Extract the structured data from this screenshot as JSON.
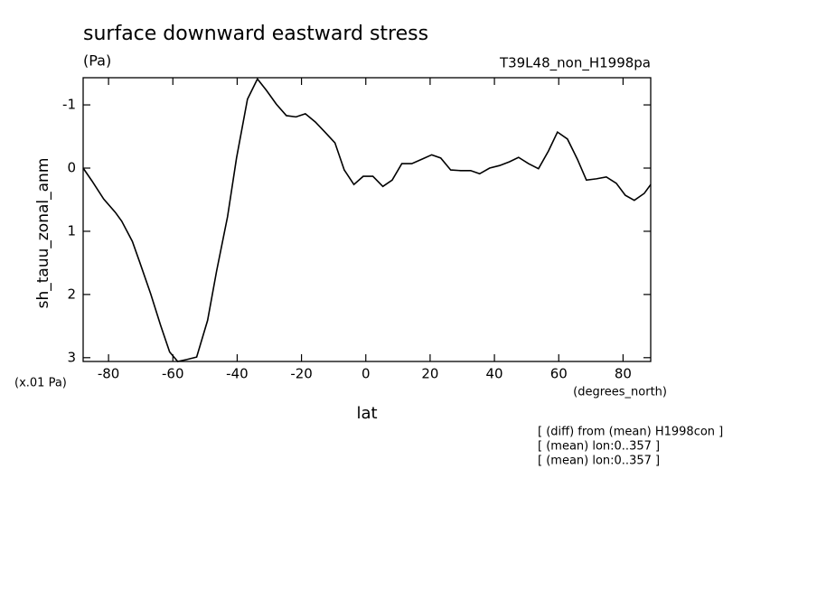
{
  "chart_data": {
    "type": "line",
    "title": "surface downward eastward stress",
    "units": "(Pa)",
    "run_label": "T39L48_non_H1998pa",
    "y_label": "sh_tauu_zonal_anm",
    "y_scale_note": "(x.01 Pa)",
    "x_units": "(degrees_north)",
    "x_label": "lat",
    "notes": [
      "[ (diff) from (mean) H1998con ]",
      "[ (mean) lon:0..357 ]",
      "[ (mean) lon:0..357 ]"
    ],
    "xlim": [
      -87.9,
      88.6
    ],
    "xticks": [
      -80,
      -60,
      -40,
      -20,
      0,
      20,
      40,
      60,
      80
    ],
    "ylim": [
      3.06,
      -1.43
    ],
    "yticks": [
      -1,
      0,
      1,
      2,
      3
    ],
    "color": "#000000",
    "x": [
      -87.9,
      -85.2,
      -81.5,
      -77.9,
      -75.9,
      -72.6,
      -70.3,
      -66.9,
      -63.8,
      -61.0,
      -58.5,
      -55.7,
      -52.6,
      -49.2,
      -46.4,
      -43.0,
      -40.2,
      -36.8,
      -33.7,
      -30.9,
      -27.8,
      -24.7,
      -21.7,
      -18.8,
      -15.7,
      -12.7,
      -9.6,
      -6.7,
      -3.7,
      -0.8,
      2.2,
      5.3,
      8.2,
      11.2,
      14.3,
      17.4,
      20.5,
      23.3,
      26.4,
      29.5,
      32.6,
      35.4,
      38.5,
      41.6,
      44.7,
      47.5,
      50.6,
      53.7,
      56.8,
      59.6,
      62.7,
      65.8,
      68.6,
      71.7,
      74.8,
      77.9,
      80.7,
      83.5,
      86.6,
      88.6
    ],
    "values": [
      0,
      0.2,
      0.49,
      0.7,
      0.84,
      1.16,
      1.49,
      1.99,
      2.49,
      2.91,
      3.06,
      3.03,
      2.99,
      2.41,
      1.63,
      0.77,
      -0.16,
      -1.09,
      -1.41,
      -1.23,
      -1.01,
      -0.83,
      -0.81,
      -0.86,
      -0.73,
      -0.57,
      -0.4,
      0.03,
      0.26,
      0.13,
      0.13,
      0.29,
      0.19,
      -0.07,
      -0.07,
      -0.14,
      -0.21,
      -0.16,
      0.03,
      0.04,
      0.04,
      0.09,
      0,
      -0.04,
      -0.1,
      -0.17,
      -0.07,
      0.01,
      -0.27,
      -0.57,
      -0.46,
      -0.14,
      0.19,
      0.17,
      0.14,
      0.24,
      0.43,
      0.51,
      0.4,
      0.26
    ]
  }
}
